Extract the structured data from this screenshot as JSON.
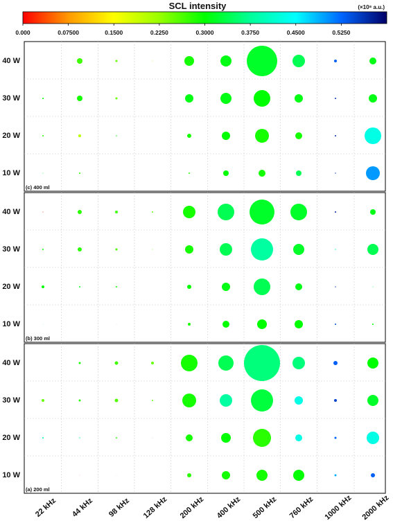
{
  "chart_data": {
    "type": "scatter",
    "title": "SCL intensity",
    "colorbar": {
      "unit_label": "(×10⁸ a.u.)",
      "range": [
        0.0,
        0.6
      ],
      "tick_labels": [
        "0.000",
        "0.07500",
        "0.1500",
        "0.2250",
        "0.3000",
        "0.3750",
        "0.4500",
        "0.5250"
      ],
      "tick_values": [
        0.0,
        0.075,
        0.15,
        0.225,
        0.3,
        0.375,
        0.45,
        0.525
      ],
      "gradient_colors": [
        "#ff0000",
        "#ff9900",
        "#ffff00",
        "#99ff00",
        "#00ff00",
        "#00ff99",
        "#00ffff",
        "#0066ff",
        "#000066"
      ]
    },
    "x_categories": [
      "22 kHz",
      "44 kHz",
      "98 kHz",
      "128 kHz",
      "200 kHz",
      "400 kHz",
      "500 kHz",
      "760 kHz",
      "1000 kHz",
      "2000 kHz"
    ],
    "y_categories": [
      "40 W",
      "30 W",
      "20 W",
      "10 W"
    ],
    "grid": true,
    "panels": [
      {
        "label": "(c) 400 ml",
        "values": [
          [
            0.0,
            0.27,
            0.25,
            0.2,
            0.29,
            0.31,
            0.32,
            0.34,
            0.53,
            0.31
          ],
          [
            0.3,
            0.29,
            0.25,
            0.0,
            0.31,
            0.31,
            0.3,
            0.31,
            0.56,
            0.31
          ],
          [
            0.28,
            0.2,
            0.3,
            0.0,
            0.29,
            0.3,
            0.29,
            0.29,
            0.57,
            0.43
          ],
          [
            0.3,
            0.28,
            0.0,
            0.0,
            0.28,
            0.3,
            0.29,
            0.34,
            0.55,
            0.5
          ]
        ],
        "sizes": [
          [
            0,
            4,
            1.5,
            0.5,
            7,
            8,
            22,
            9,
            2,
            5
          ],
          [
            1,
            4,
            1.5,
            0,
            6,
            8,
            12,
            6,
            1,
            6
          ],
          [
            1,
            2,
            0.7,
            0,
            3,
            6,
            10,
            5,
            1,
            12
          ],
          [
            0.5,
            1,
            0,
            0,
            1,
            4,
            5,
            4,
            0.7,
            10
          ]
        ]
      },
      {
        "label": "(b) 300 ml",
        "values": [
          [
            0.0,
            0.28,
            0.27,
            0.25,
            0.29,
            0.34,
            0.32,
            0.32,
            0.57,
            0.31
          ],
          [
            0.29,
            0.28,
            0.27,
            0.25,
            0.29,
            0.34,
            0.38,
            0.32,
            0.4,
            0.34
          ],
          [
            0.3,
            0.32,
            0.29,
            0.0,
            0.3,
            0.31,
            0.34,
            0.31,
            0.55,
            0.35
          ],
          [
            0.3,
            0.0,
            0.3,
            0.0,
            0.29,
            0.3,
            0.3,
            0.3,
            0.55,
            0.3
          ]
        ],
        "sizes": [
          [
            0.5,
            3,
            2,
            1,
            9,
            12,
            18,
            12,
            1,
            4
          ],
          [
            1,
            3,
            1.5,
            0.5,
            6,
            9,
            16,
            8,
            0.7,
            8
          ],
          [
            2,
            1,
            1,
            0,
            3,
            6,
            12,
            5,
            0.7,
            0.5
          ],
          [
            0.3,
            0,
            0.3,
            0,
            2,
            5,
            7,
            6,
            1,
            1
          ]
        ]
      },
      {
        "label": "(a) 200 ml",
        "values": [
          [
            0.0,
            0.29,
            0.27,
            0.25,
            0.29,
            0.34,
            0.36,
            0.36,
            0.53,
            0.3
          ],
          [
            0.25,
            0.28,
            0.26,
            0.25,
            0.29,
            0.38,
            0.33,
            0.43,
            0.55,
            0.32
          ],
          [
            0.38,
            0.36,
            0.28,
            0.0,
            0.29,
            0.3,
            0.28,
            0.43,
            0.53,
            0.43
          ],
          [
            0.0,
            0.0,
            0.3,
            0.0,
            0.28,
            0.29,
            0.29,
            0.3,
            0.49,
            0.53
          ]
        ],
        "sizes": [
          [
            0,
            1.5,
            2.5,
            2,
            12,
            11,
            26,
            9,
            3,
            8
          ],
          [
            2,
            1.5,
            2.5,
            1,
            10,
            9,
            16,
            6,
            2,
            8
          ],
          [
            1,
            0.7,
            1,
            0.3,
            5,
            7,
            13,
            5,
            1.5,
            9
          ],
          [
            0,
            0.3,
            0.3,
            0,
            3,
            6,
            8,
            8,
            1.5,
            3
          ]
        ]
      }
    ]
  }
}
